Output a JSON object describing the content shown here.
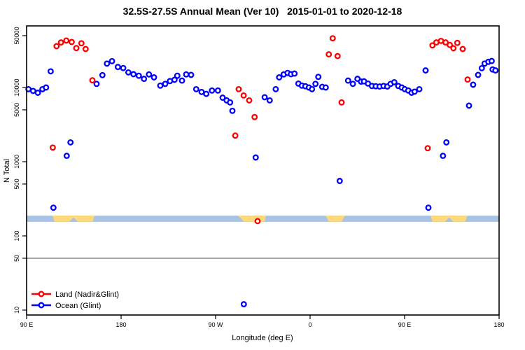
{
  "title": "32.5S-27.5S Annual Mean (Ver 10)   2015-01-01 to 2020-12-18",
  "chart_data": {
    "type": "scatter",
    "title": "32.5S-27.5S Annual Mean (Ver 10)   2015-01-01 to 2020-12-18",
    "xlabel": "Longitude (deg E)",
    "ylabel": "N Total",
    "y_scale": "log",
    "grid": "off",
    "x_axis": {
      "range": [
        90,
        540
      ],
      "ticks": [
        90,
        180,
        270,
        360,
        450,
        540
      ],
      "tick_labels": [
        "90 E",
        "180",
        "90 W",
        "0",
        "90 E",
        "180"
      ]
    },
    "y_axis": {
      "range": [
        10,
        70000
      ],
      "ticks": [
        10,
        50,
        100,
        500,
        1000,
        5000,
        10000,
        50000
      ],
      "tick_labels": [
        "10",
        "50",
        "100",
        "500",
        "1000",
        "5000",
        "10000",
        "50000"
      ]
    },
    "reference_line_value": 50,
    "reference_line_color": "#7f7f7f",
    "map_strip": {
      "comment": "land/ocean map band drawn across plot, value range approx 155-188",
      "value_range": [
        155,
        188
      ],
      "ocean_color": "#a9c3e3",
      "land_color": "#fcd87f",
      "land_segments": [
        {
          "lon": [
            114.7,
            154.7
          ],
          "notch": true,
          "inset": [
            3,
            3
          ]
        },
        {
          "lon": [
            291.3,
            318.0
          ],
          "notch": false,
          "inset": [
            9,
            2
          ]
        },
        {
          "lon": [
            374.7,
            393.3
          ],
          "notch": false,
          "inset": [
            5,
            5
          ]
        },
        {
          "lon": [
            474.7,
            510.0
          ],
          "notch": true,
          "inset": [
            3,
            4
          ]
        }
      ]
    },
    "legend": {
      "position": "bottom-left",
      "entries": [
        "Land (Nadir&Glint)",
        "Ocean (Glint)"
      ]
    },
    "series": [
      {
        "name": "Land (Nadir&Glint)",
        "id": "land",
        "color": "#ff0000",
        "points": [
          [
            114.9,
            1550
          ],
          [
            118.5,
            36000
          ],
          [
            122.7,
            40500
          ],
          [
            127.8,
            43000
          ],
          [
            132.9,
            41000
          ],
          [
            137.3,
            34000
          ],
          [
            142.2,
            39500
          ],
          [
            146.2,
            33000
          ],
          [
            152.7,
            12500
          ],
          [
            288.7,
            2250
          ],
          [
            292.0,
            9500
          ],
          [
            296.7,
            7800
          ],
          [
            302.0,
            6700
          ],
          [
            307.1,
            4000
          ],
          [
            310.0,
            158
          ],
          [
            377.8,
            28000
          ],
          [
            381.5,
            46000
          ],
          [
            386.2,
            26500
          ],
          [
            390.0,
            6300
          ],
          [
            472.0,
            1520
          ],
          [
            476.5,
            37000
          ],
          [
            480.2,
            40500
          ],
          [
            484.7,
            42500
          ],
          [
            489.1,
            40500
          ],
          [
            493.1,
            37500
          ],
          [
            496.5,
            33800
          ],
          [
            500.2,
            40000
          ],
          [
            505.3,
            33000
          ],
          [
            510.0,
            12800
          ]
        ]
      },
      {
        "name": "Ocean (Glint)",
        "id": "ocean",
        "color": "#0000ff",
        "points": [
          [
            91.8,
            9500
          ],
          [
            96.2,
            9000
          ],
          [
            100.7,
            8500
          ],
          [
            105.1,
            9500
          ],
          [
            108.5,
            10000
          ],
          [
            112.9,
            16500
          ],
          [
            115.5,
            240
          ],
          [
            128.2,
            1200
          ],
          [
            131.8,
            1820
          ],
          [
            156.7,
            11200
          ],
          [
            162.2,
            14700
          ],
          [
            166.5,
            21000
          ],
          [
            171.3,
            22700
          ],
          [
            176.9,
            18900
          ],
          [
            182.0,
            18300
          ],
          [
            186.9,
            16000
          ],
          [
            191.8,
            15100
          ],
          [
            196.9,
            14400
          ],
          [
            201.8,
            13100
          ],
          [
            206.5,
            15000
          ],
          [
            211.3,
            13700
          ],
          [
            217.3,
            10600
          ],
          [
            222.0,
            11200
          ],
          [
            226.5,
            12200
          ],
          [
            230.9,
            12700
          ],
          [
            233.5,
            14400
          ],
          [
            238.0,
            12400
          ],
          [
            242.0,
            15000
          ],
          [
            246.7,
            14800
          ],
          [
            251.5,
            9500
          ],
          [
            256.7,
            8700
          ],
          [
            261.1,
            8200
          ],
          [
            266.5,
            9100
          ],
          [
            272.2,
            9100
          ],
          [
            276.7,
            7300
          ],
          [
            280.5,
            6700
          ],
          [
            283.8,
            6300
          ],
          [
            286.0,
            4850
          ],
          [
            296.9,
            12
          ],
          [
            308.2,
            1140
          ],
          [
            316.7,
            7400
          ],
          [
            321.5,
            6700
          ],
          [
            327.3,
            9500
          ],
          [
            330.5,
            13700
          ],
          [
            334.9,
            15000
          ],
          [
            338.5,
            15700
          ],
          [
            341.8,
            15100
          ],
          [
            345.1,
            15400
          ],
          [
            348.9,
            11300
          ],
          [
            352.2,
            10600
          ],
          [
            355.5,
            10400
          ],
          [
            358.9,
            10000
          ],
          [
            361.8,
            9500
          ],
          [
            365.1,
            11200
          ],
          [
            367.8,
            13900
          ],
          [
            371.5,
            10200
          ],
          [
            374.9,
            10000
          ],
          [
            388.2,
            550
          ],
          [
            396.2,
            12400
          ],
          [
            400.7,
            11200
          ],
          [
            405.1,
            13100
          ],
          [
            408.5,
            12000
          ],
          [
            411.3,
            12100
          ],
          [
            415.1,
            11300
          ],
          [
            418.9,
            10500
          ],
          [
            422.5,
            10400
          ],
          [
            426.2,
            10300
          ],
          [
            430.0,
            10500
          ],
          [
            433.5,
            10300
          ],
          [
            436.7,
            11200
          ],
          [
            440.2,
            11800
          ],
          [
            444.0,
            10500
          ],
          [
            447.3,
            10000
          ],
          [
            450.2,
            9500
          ],
          [
            453.5,
            9100
          ],
          [
            456.7,
            8500
          ],
          [
            459.5,
            8800
          ],
          [
            464.0,
            9500
          ],
          [
            470.0,
            17000
          ],
          [
            472.7,
            240
          ],
          [
            486.5,
            1200
          ],
          [
            489.8,
            1820
          ],
          [
            511.3,
            5700
          ],
          [
            515.3,
            10900
          ],
          [
            520.0,
            14800
          ],
          [
            523.5,
            18200
          ],
          [
            526.2,
            21000
          ],
          [
            529.8,
            22200
          ],
          [
            532.9,
            22800
          ],
          [
            533.8,
            17500
          ],
          [
            536.5,
            17000
          ]
        ]
      }
    ]
  }
}
